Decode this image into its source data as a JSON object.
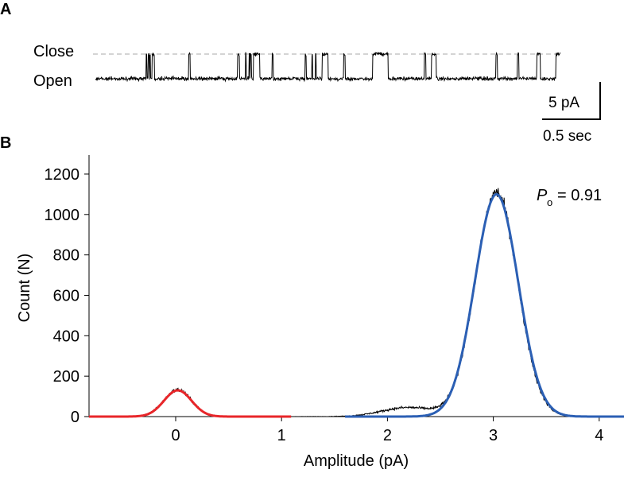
{
  "chart_data": [
    {
      "panel": "A",
      "type": "line",
      "title": "",
      "level_labels": {
        "close": "Close",
        "open": "Open"
      },
      "duration_sec": 4.0,
      "levels_pA": {
        "open": 0,
        "close": 3
      },
      "closure_events_sec": [
        [
          0.99,
          1.01
        ],
        [
          1.03,
          1.05
        ],
        [
          1.06,
          1.08
        ],
        [
          1.11,
          1.15
        ],
        [
          1.82,
          1.85
        ],
        [
          2.78,
          2.82
        ],
        [
          2.93,
          2.95
        ],
        [
          3.0,
          3.02
        ],
        [
          3.03,
          3.05
        ],
        [
          3.09,
          3.21
        ],
        [
          3.45,
          3.48
        ],
        [
          4.1,
          4.12
        ],
        [
          4.23,
          4.25
        ],
        [
          4.3,
          4.32
        ],
        [
          4.43,
          4.55
        ],
        [
          4.85,
          4.88
        ],
        [
          5.42,
          5.72
        ],
        [
          6.43,
          6.46
        ],
        [
          6.57,
          6.66
        ],
        [
          7.83,
          7.86
        ],
        [
          8.25,
          8.28
        ],
        [
          8.63,
          8.7
        ],
        [
          9.0,
          9.12
        ]
      ],
      "time_scale_factor": 0.44,
      "scale_bar": {
        "current_label": "5 pA",
        "time_label": "0.5 sec",
        "current_pA": 5,
        "time_sec": 0.5
      }
    },
    {
      "panel": "B",
      "type": "line",
      "xlabel": "Amplitude (pA)",
      "ylabel": "Count (N)",
      "xlim": [
        -0.82,
        4.24
      ],
      "ylim": [
        0,
        1300
      ],
      "xticks": [
        "0",
        "1",
        "2",
        "3",
        "4"
      ],
      "yticks": [
        "0",
        "200",
        "400",
        "600",
        "800",
        "1000",
        "1200"
      ],
      "annotation": {
        "symbol": "P",
        "subscript": "o",
        "text": "= 0.91"
      },
      "series": [
        {
          "name": "histogram",
          "color": "#000000",
          "components": [
            {
              "mean": 0.02,
              "amp": 132,
              "sigma": 0.13
            },
            {
              "mean": 3.03,
              "amp": 1110,
              "sigma": 0.2
            },
            {
              "mean": 2.2,
              "amp": 45,
              "sigma": 0.25
            }
          ]
        },
        {
          "name": "closed fit",
          "color": "#e8262a",
          "mean": 0.02,
          "amp": 130,
          "sigma": 0.13,
          "range": [
            -0.82,
            1.1
          ]
        },
        {
          "name": "open fit",
          "color": "#2b5fb4",
          "mean": 3.03,
          "amp": 1100,
          "sigma": 0.205,
          "range": [
            1.6,
            4.24
          ]
        }
      ]
    }
  ],
  "panel_labels": [
    "A",
    "B"
  ]
}
